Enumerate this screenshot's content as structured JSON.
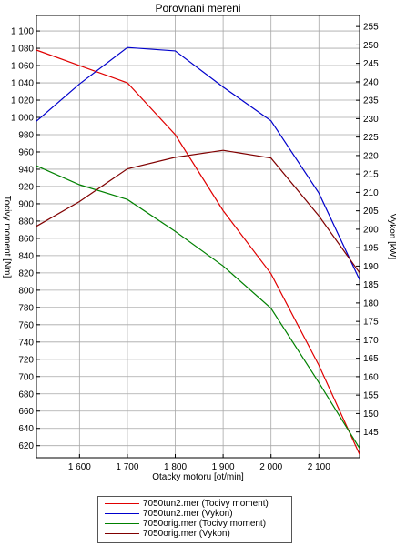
{
  "chart_data": {
    "type": "line",
    "title": "Porovnani mereni",
    "xlabel": "Otacky motoru [ot/min]",
    "ylabel_left": "Tocivy moment [Nm]",
    "ylabel_right": "Vykon [kW]",
    "xlim": [
      1510,
      2185
    ],
    "ylim_left": [
      606,
      1118
    ],
    "ylim_right": [
      138,
      258
    ],
    "x_ticks": [
      1600,
      1700,
      1800,
      1900,
      2000,
      2100
    ],
    "x_tick_labels": [
      "1 600",
      "1 700",
      "1 800",
      "1 900",
      "2 000",
      "2 100"
    ],
    "y_left_ticks": [
      620,
      640,
      660,
      680,
      700,
      720,
      740,
      760,
      780,
      800,
      820,
      840,
      860,
      880,
      900,
      920,
      940,
      960,
      980,
      1000,
      1020,
      1040,
      1060,
      1080,
      1100
    ],
    "y_left_tick_labels": [
      "620",
      "640",
      "660",
      "680",
      "700",
      "720",
      "740",
      "760",
      "780",
      "800",
      "820",
      "840",
      "860",
      "880",
      "900",
      "920",
      "940",
      "960",
      "980",
      "1 000",
      "1 020",
      "1 040",
      "1 060",
      "1 080",
      "1 100"
    ],
    "y_right_ticks": [
      145,
      150,
      155,
      160,
      165,
      170,
      175,
      180,
      185,
      190,
      195,
      200,
      205,
      210,
      215,
      220,
      225,
      230,
      235,
      240,
      245,
      250,
      255
    ],
    "y_right_tick_labels": [
      "145",
      "150",
      "155",
      "160",
      "165",
      "170",
      "175",
      "180",
      "185",
      "190",
      "195",
      "200",
      "205",
      "210",
      "215",
      "220",
      "225",
      "230",
      "235",
      "240",
      "245",
      "250",
      "255"
    ],
    "grid": true,
    "series": [
      {
        "name": "7050tun2.mer  (Tocivy moment)",
        "axis": "left",
        "color": "#e00000",
        "x": [
          1510,
          1600,
          1700,
          1800,
          1900,
          2000,
          2100,
          2185
        ],
        "y": [
          1078,
          1060,
          1040,
          980,
          892,
          819,
          713,
          610
        ]
      },
      {
        "name": "7050tun2.mer  (Vykon)",
        "axis": "right",
        "color": "#0000cc",
        "x": [
          1510,
          1600,
          1700,
          1800,
          1900,
          2000,
          2100,
          2185
        ],
        "y": [
          229.3,
          239.4,
          249.3,
          248.4,
          238.6,
          229.4,
          209.8,
          186.3
        ]
      },
      {
        "name": "7050orig.mer  (Tocivy moment)",
        "axis": "left",
        "color": "#008000",
        "x": [
          1510,
          1600,
          1700,
          1800,
          1900,
          2000,
          2100,
          2185
        ],
        "y": [
          944,
          922,
          905,
          868,
          828,
          779,
          693,
          617
        ]
      },
      {
        "name": "7050orig.mer  (Vykon)",
        "axis": "right",
        "color": "#800000",
        "x": [
          1510,
          1600,
          1700,
          1800,
          1900,
          2000,
          2100,
          2185
        ],
        "y": [
          200.8,
          207.5,
          216.4,
          219.5,
          221.4,
          219.3,
          203.6,
          188.2
        ]
      }
    ],
    "legend_position": "bottom"
  }
}
